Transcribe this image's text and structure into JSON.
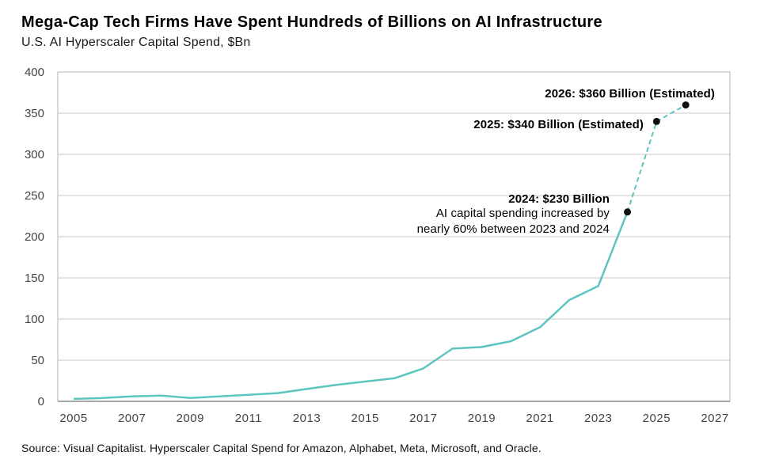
{
  "header": {
    "title": "Mega-Cap Tech Firms Have Spent Hundreds of Billions on AI Infrastructure",
    "subtitle": "U.S. AI Hyperscaler Capital Spend, $Bn"
  },
  "chart_data": {
    "type": "line",
    "title": "Mega-Cap Tech Firms Have Spent Hundreds of Billions on AI Infrastructure",
    "subtitle": "U.S. AI Hyperscaler Capital Spend, $Bn",
    "xlabel": "",
    "ylabel": "Capital Spend, $Bn",
    "x": [
      2005,
      2006,
      2007,
      2008,
      2009,
      2010,
      2011,
      2012,
      2013,
      2014,
      2015,
      2016,
      2017,
      2018,
      2019,
      2020,
      2021,
      2022,
      2023,
      2024,
      2025,
      2026
    ],
    "values": [
      3,
      4,
      6,
      7,
      4,
      6,
      8,
      10,
      15,
      20,
      24,
      28,
      40,
      64,
      66,
      73,
      90,
      123,
      140,
      230,
      340,
      360
    ],
    "dashed_from_year": 2024,
    "estimated_years": [
      2025,
      2026
    ],
    "marker_years": [
      2024,
      2025,
      2026
    ],
    "yticks": [
      0,
      50,
      100,
      150,
      200,
      250,
      300,
      350,
      400
    ],
    "ylim": [
      0,
      400
    ],
    "xticks": [
      2005,
      2007,
      2009,
      2011,
      2013,
      2015,
      2017,
      2019,
      2021,
      2023,
      2025,
      2027
    ],
    "grid": "horizontal",
    "legend_position": "none",
    "line_color": "#5cc5be",
    "marker_color": "#111111",
    "grid_color": "#c9c9c9",
    "border_color": "#b3b3b3",
    "axis_line_color": "#8c8c8c",
    "tick_color": "#444444",
    "annotations": [
      {
        "text": "2026: $360 Billion (Estimated)"
      },
      {
        "text": "2025: $340 Billion (Estimated)"
      },
      {
        "text": "2024: $230 Billion",
        "note_lines": [
          "AI capital spending increased by",
          "nearly 60% between 2023 and 2024"
        ]
      }
    ]
  },
  "source": "Source: Visual Capitalist. Hyperscaler Capital Spend for Amazon, Alphabet, Meta, Microsoft, and Oracle."
}
